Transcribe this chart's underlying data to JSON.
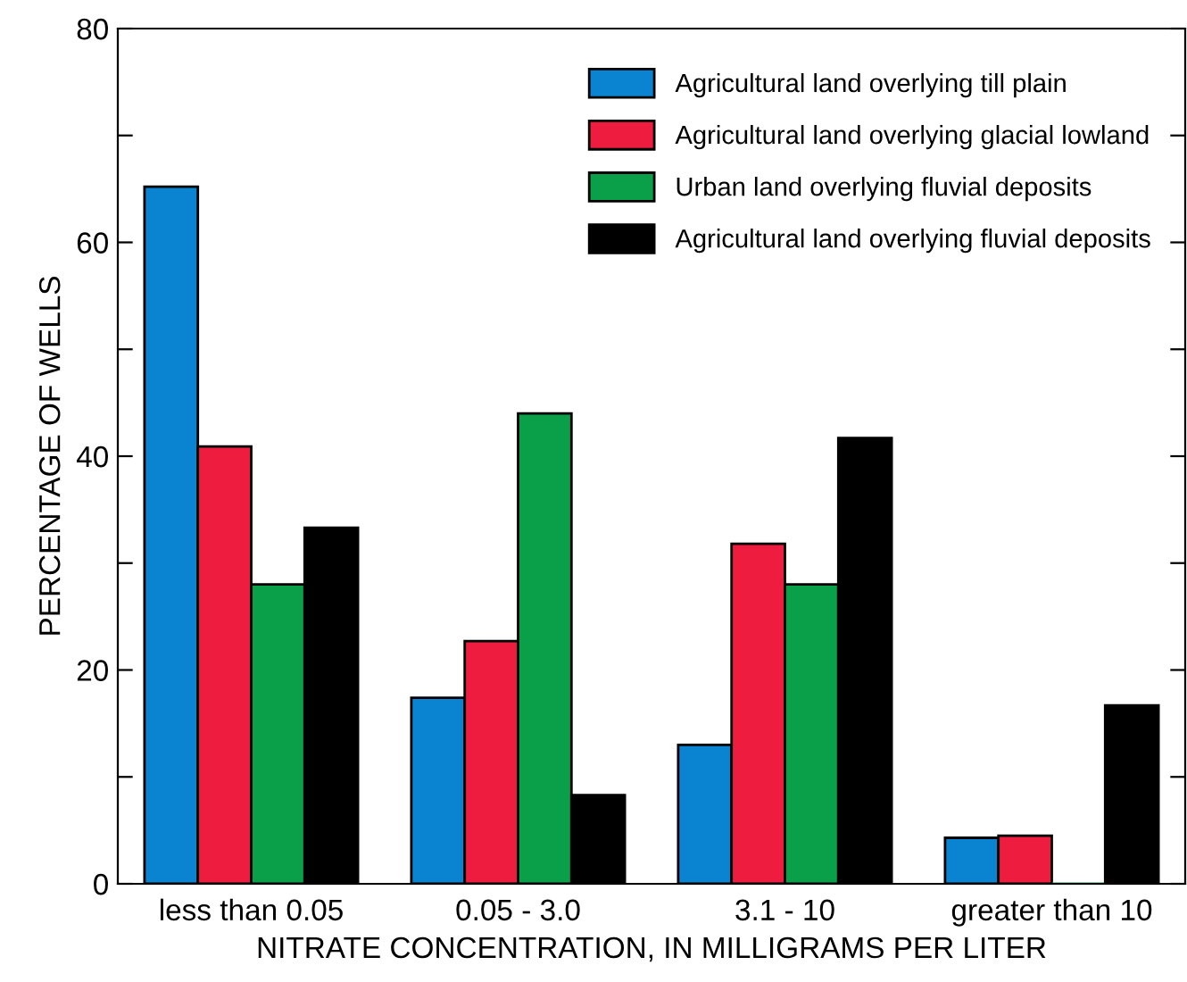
{
  "chart_data": {
    "type": "bar",
    "xlabel": "NITRATE CONCENTRATION, IN MILLIGRAMS PER LITER",
    "ylabel": "PERCENTAGE OF WELLS",
    "categories": [
      "less than 0.05",
      "0.05 - 3.0",
      "3.1 - 10",
      "greater than 10"
    ],
    "series": [
      {
        "name": "Agricultural land overlying till plain",
        "color": "#0a84d0",
        "values": [
          65.2,
          17.4,
          13.0,
          4.3
        ]
      },
      {
        "name": "Agricultural land overlying glacial lowland",
        "color": "#ee1c3e",
        "values": [
          40.9,
          22.7,
          31.8,
          4.5
        ]
      },
      {
        "name": "Urban land overlying fluvial deposits",
        "color": "#0aa04a",
        "values": [
          28.0,
          44.0,
          28.0,
          0
        ]
      },
      {
        "name": "Agricultural land overlying fluvial deposits",
        "color": "#000000",
        "values": [
          33.3,
          8.3,
          41.7,
          16.7
        ]
      }
    ],
    "ylim": [
      0,
      80
    ],
    "yticks": [
      0,
      {
        "value": 10,
        "label": null
      },
      20,
      {
        "value": 30,
        "label": null
      },
      40,
      {
        "value": 50,
        "label": null
      },
      60,
      {
        "value": 70,
        "label": null
      },
      80
    ],
    "grid": false,
    "legend": "top right"
  }
}
